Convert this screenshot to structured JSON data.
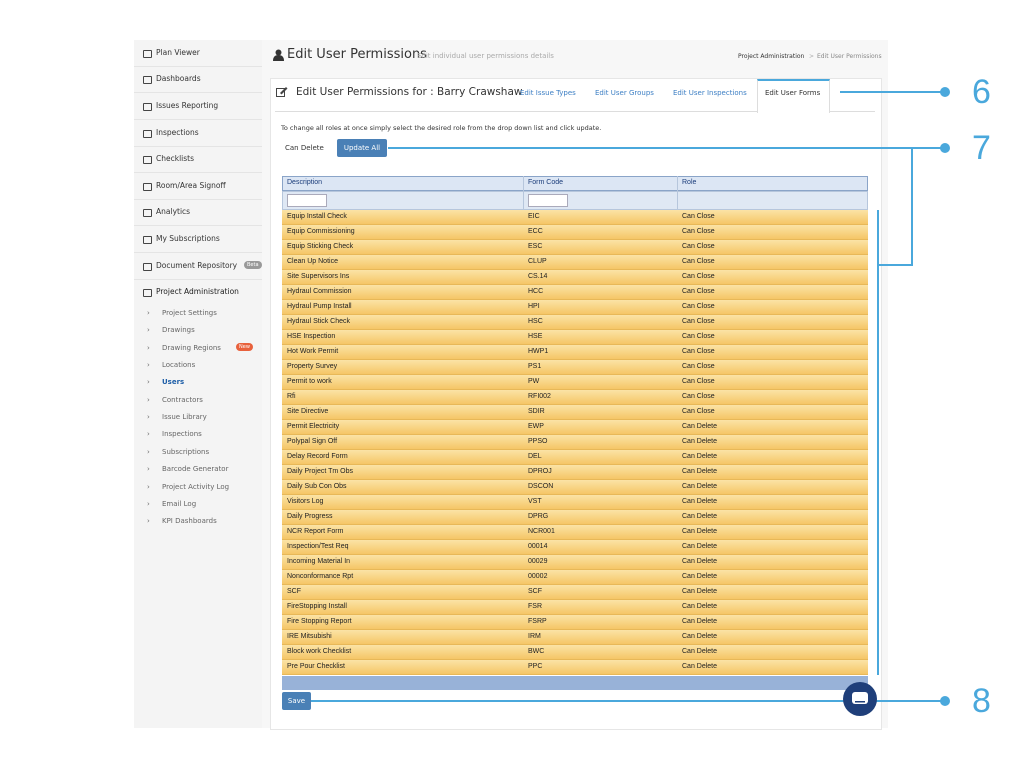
{
  "sidebar": {
    "items": [
      "Plan Viewer",
      "Dashboards",
      "Issues Reporting",
      "Inspections",
      "Checklists",
      "Room/Area Signoff",
      "Analytics",
      "My Subscriptions",
      "Document Repository",
      "Project Administration"
    ],
    "document_badge": "Beta",
    "sub_items": [
      "Project Settings",
      "Drawings",
      "Drawing Regions",
      "Locations",
      "Users",
      "Contractors",
      "Issue Library",
      "Inspections",
      "Subscriptions",
      "Barcode Generator",
      "Project Activity Log",
      "Email Log",
      "KPI Dashboards"
    ],
    "regions_badge": "New"
  },
  "header": {
    "title": "Edit User Permissions",
    "subtitle": "Edit individual user permissions details",
    "breadcrumb": [
      "Project Administration",
      "Edit User Permissions"
    ]
  },
  "panel": {
    "title": "Edit User Permissions for : Barry Crawshaw",
    "tabs": [
      "Edit Issue Types",
      "Edit User Groups",
      "Edit User Inspections",
      "Edit User Forms"
    ],
    "instructions": "To change all roles at once simply select the desired role from the drop down list and click update.",
    "role_select": "Can Delete",
    "update_button": "Update All",
    "save_button": "Save"
  },
  "table": {
    "columns": [
      "Description",
      "Form Code",
      "Role"
    ],
    "rows": [
      [
        "Equip Install Check",
        "EIC",
        "Can Close"
      ],
      [
        "Equip Commissioning",
        "ECC",
        "Can Close"
      ],
      [
        "Equip Sticking Check",
        "ESC",
        "Can Close"
      ],
      [
        "Clean Up Notice",
        "CLUP",
        "Can Close"
      ],
      [
        "Site Supervisors Ins",
        "CS.14",
        "Can Close"
      ],
      [
        "Hydraul Commission",
        "HCC",
        "Can Close"
      ],
      [
        "Hydraul Pump Install",
        "HPI",
        "Can Close"
      ],
      [
        "Hydraul Stick Check",
        "HSC",
        "Can Close"
      ],
      [
        "HSE Inspection",
        "HSE",
        "Can Close"
      ],
      [
        "Hot Work Permit",
        "HWP1",
        "Can Close"
      ],
      [
        "Property Survey",
        "PS1",
        "Can Close"
      ],
      [
        "Permit to work",
        "PW",
        "Can Close"
      ],
      [
        "Rfi",
        "RFI002",
        "Can Close"
      ],
      [
        "Site Directive",
        "SDIR",
        "Can Close"
      ],
      [
        "Permit Electricity",
        "EWP",
        "Can Delete"
      ],
      [
        "Polypal Sign Off",
        "PPSO",
        "Can Delete"
      ],
      [
        "Delay Record Form",
        "DEL",
        "Can Delete"
      ],
      [
        "Daily Project Tm Obs",
        "DPROJ",
        "Can Delete"
      ],
      [
        "Daily Sub Con Obs",
        "DSCON",
        "Can Delete"
      ],
      [
        "Visitors Log",
        "VST",
        "Can Delete"
      ],
      [
        "Daily Progress",
        "DPRG",
        "Can Delete"
      ],
      [
        "NCR Report Form",
        "NCR001",
        "Can Delete"
      ],
      [
        "Inspection/Test Req",
        "00014",
        "Can Delete"
      ],
      [
        "Incoming Material In",
        "00029",
        "Can Delete"
      ],
      [
        "Nonconformance Rpt",
        "00002",
        "Can Delete"
      ],
      [
        "SCF",
        "SCF",
        "Can Delete"
      ],
      [
        "FireStopping Install",
        "FSR",
        "Can Delete"
      ],
      [
        "Fire Stopping Report",
        "FSRP",
        "Can Delete"
      ],
      [
        "IRE Mitsubishi",
        "IRM",
        "Can Delete"
      ],
      [
        "Block work Checklist",
        "BWC",
        "Can Delete"
      ],
      [
        "Pre Pour Checklist",
        "PPC",
        "Can Delete"
      ]
    ]
  },
  "callouts": [
    "6",
    "7",
    "8"
  ]
}
